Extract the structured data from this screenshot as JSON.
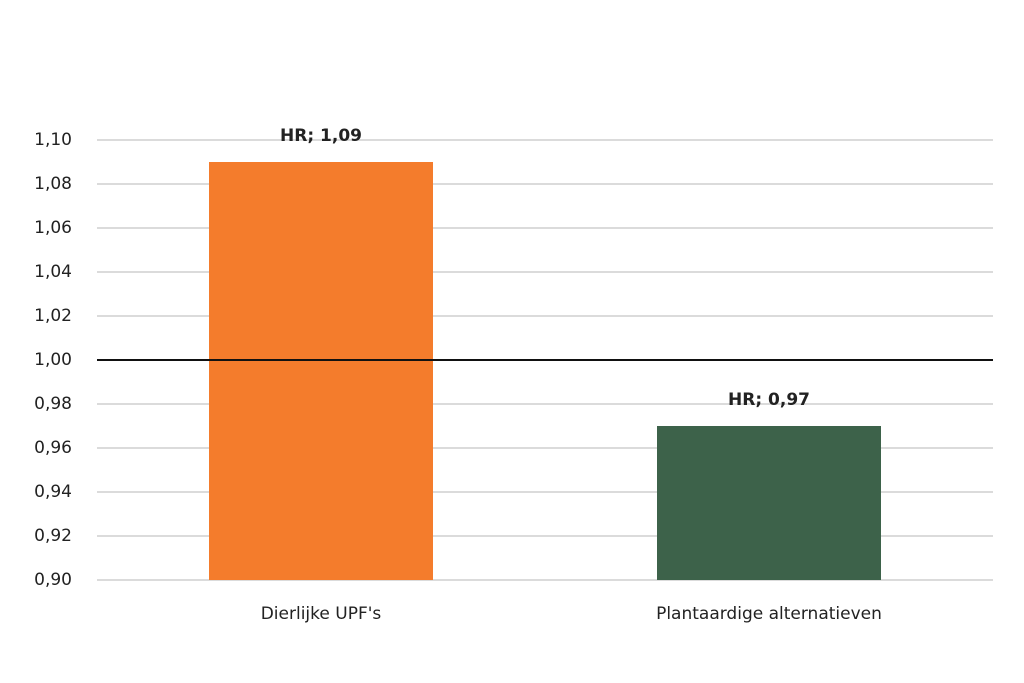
{
  "chart_data": {
    "type": "bar",
    "categories": [
      "Dierlijke UPF's",
      "Plantaardige alternatieven"
    ],
    "values": [
      1.09,
      0.97
    ],
    "value_labels": [
      "HR; 1,09",
      "HR; 0,97"
    ],
    "colors": [
      "#f47c2c",
      "#3d624a"
    ],
    "ylim": [
      0.9,
      1.1
    ],
    "yticks": [
      {
        "value": 0.9,
        "label": "0,90"
      },
      {
        "value": 0.92,
        "label": "0,92"
      },
      {
        "value": 0.94,
        "label": "0,94"
      },
      {
        "value": 0.96,
        "label": "0,96"
      },
      {
        "value": 0.98,
        "label": "0,98"
      },
      {
        "value": 1.0,
        "label": "1,00"
      },
      {
        "value": 1.02,
        "label": "1,02"
      },
      {
        "value": 1.04,
        "label": "1,04"
      },
      {
        "value": 1.06,
        "label": "1,06"
      },
      {
        "value": 1.08,
        "label": "1,08"
      },
      {
        "value": 1.1,
        "label": "1,10"
      }
    ],
    "reference_line": 1.0,
    "grid": true
  }
}
